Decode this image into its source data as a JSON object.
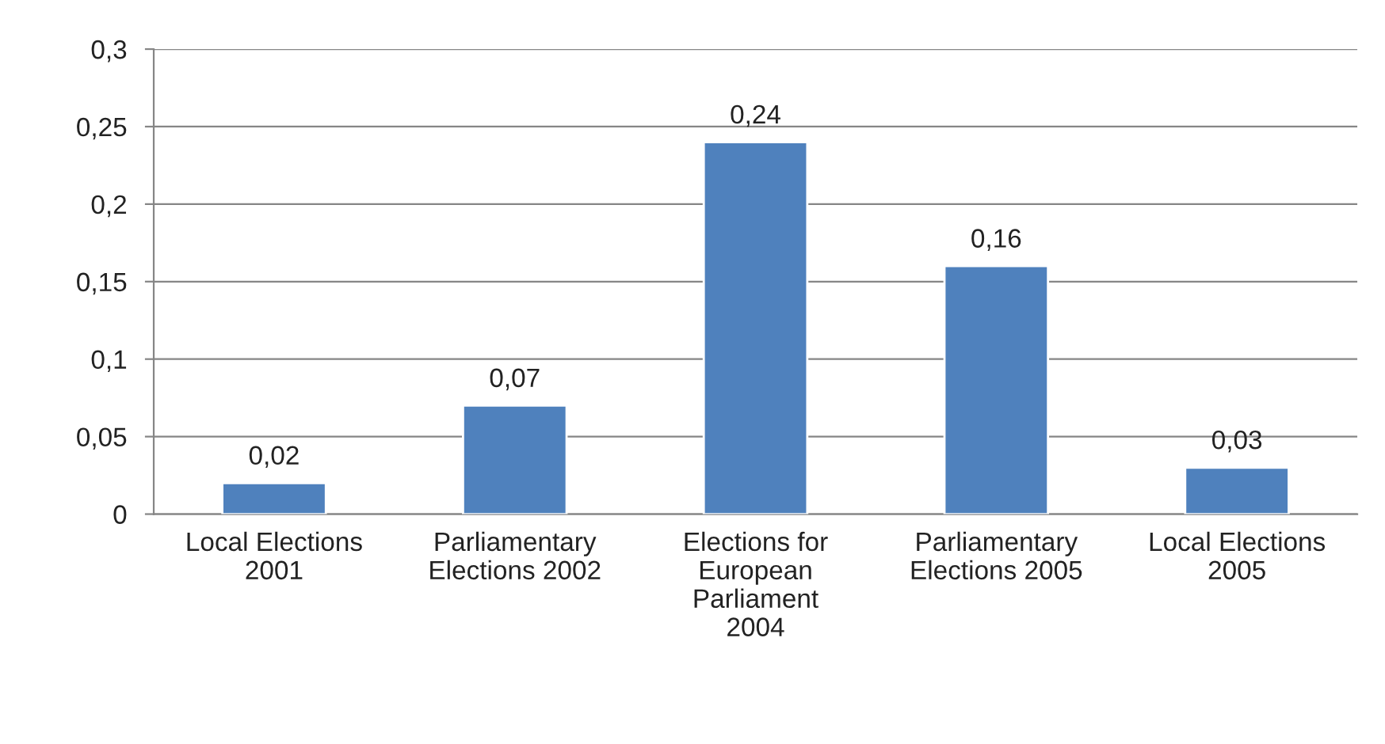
{
  "chart_data": {
    "type": "bar",
    "categories": [
      "Local Elections\n2001",
      "Parliamentary\nElections 2002",
      "Elections for\nEuropean\nParliament\n2004",
      "Parliamentary\nElections 2005",
      "Local Elections\n2005"
    ],
    "values": [
      0.02,
      0.07,
      0.24,
      0.16,
      0.03
    ],
    "value_labels": [
      "0,02",
      "0,07",
      "0,24",
      "0,16",
      "0,03"
    ],
    "color": "#4f81bd",
    "ylim": [
      0,
      0.3
    ],
    "yticks": [
      0,
      {
        "value": 0.05,
        "label": "0,05"
      },
      {
        "value": 0.1,
        "label": "0,1"
      },
      {
        "value": 0.15,
        "label": "0,15"
      },
      {
        "value": 0.2,
        "label": "0,2"
      },
      {
        "value": 0.25,
        "label": "0,25"
      },
      {
        "value": 0.3,
        "label": "0,3"
      }
    ],
    "grid": "y"
  }
}
